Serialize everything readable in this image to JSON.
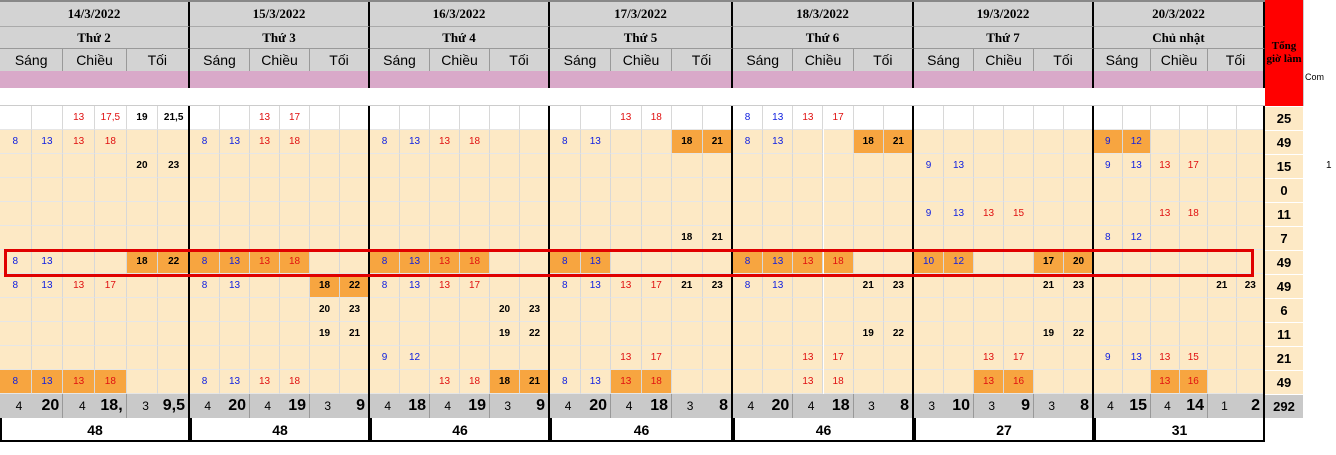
{
  "days": [
    {
      "date": "14/3/2022",
      "day": "Thứ 2"
    },
    {
      "date": "15/3/2022",
      "day": "Thứ 3"
    },
    {
      "date": "16/3/2022",
      "day": "Thứ 4"
    },
    {
      "date": "17/3/2022",
      "day": "Thứ 5"
    },
    {
      "date": "18/3/2022",
      "day": "Thứ 6"
    },
    {
      "date": "19/3/2022",
      "day": "Thứ 7"
    },
    {
      "date": "20/3/2022",
      "day": "Chủ nhật"
    }
  ],
  "shift_labels": [
    "Sáng",
    "Chiều",
    "Tối"
  ],
  "right_col": {
    "header": "Tổng giờ làm",
    "next_header": "Com",
    "values": [
      "25",
      "49",
      "15",
      "0",
      "11",
      "7",
      "49",
      "49",
      "6",
      "11",
      "21",
      "49",
      "292"
    ],
    "overflow": "1"
  },
  "colors": {
    "light": "#fde9c5",
    "orange": "#f7a540",
    "blue": "#1020e0",
    "red": "#e01010",
    "header": "#d3d3d3",
    "pink": "#d9a9c9",
    "accent": "#ff0000"
  },
  "rows": [
    [
      [
        [],
        [
          "13",
          "17,5"
        ],
        [
          "19",
          "21,5"
        ]
      ],
      [
        [],
        [
          "13",
          "17"
        ],
        []
      ],
      [
        [],
        [],
        []
      ],
      [
        [],
        [
          "13",
          "18"
        ],
        []
      ],
      [
        [
          "8",
          "13"
        ],
        [
          "13",
          "17"
        ],
        []
      ],
      [
        [],
        [],
        []
      ],
      [
        [],
        [],
        []
      ]
    ],
    [
      [
        [
          "8",
          "13"
        ],
        [
          "13",
          "18"
        ],
        []
      ],
      [
        [
          "8",
          "13"
        ],
        [
          "13",
          "18"
        ],
        []
      ],
      [
        [
          "8",
          "13"
        ],
        [
          "13",
          "18"
        ],
        []
      ],
      [
        [
          "8",
          "13"
        ],
        [],
        [
          "18",
          "21"
        ]
      ],
      [
        [
          "8",
          "13"
        ],
        [],
        [
          "18",
          "21"
        ]
      ],
      [
        [],
        [],
        []
      ],
      [
        [
          "9",
          "12"
        ],
        [],
        []
      ]
    ],
    [
      [
        [],
        [],
        [
          "20",
          "23"
        ]
      ],
      [
        [],
        [],
        []
      ],
      [
        [],
        [],
        []
      ],
      [
        [],
        [],
        []
      ],
      [
        [],
        [],
        []
      ],
      [
        [
          "9",
          "13"
        ],
        [],
        []
      ],
      [
        [
          "9",
          "13"
        ],
        [
          "13",
          "17"
        ],
        []
      ]
    ],
    [
      [
        [],
        [],
        []
      ],
      [
        [],
        [],
        []
      ],
      [
        [],
        [],
        []
      ],
      [
        [],
        [],
        []
      ],
      [
        [],
        [],
        []
      ],
      [
        [],
        [],
        []
      ],
      [
        [],
        [],
        []
      ]
    ],
    [
      [
        [],
        [],
        []
      ],
      [
        [],
        [],
        []
      ],
      [
        [],
        [],
        []
      ],
      [
        [],
        [],
        []
      ],
      [
        [],
        [],
        []
      ],
      [
        [
          "9",
          "13"
        ],
        [
          "13",
          "15"
        ],
        []
      ],
      [
        [],
        [
          "13",
          "18"
        ],
        []
      ]
    ],
    [
      [
        [],
        [],
        []
      ],
      [
        [],
        [],
        []
      ],
      [
        [],
        [],
        []
      ],
      [
        [],
        [],
        [
          "18",
          "21"
        ]
      ],
      [
        [],
        [],
        []
      ],
      [
        [],
        [],
        []
      ],
      [
        [
          "8",
          "12"
        ],
        [],
        []
      ]
    ],
    [
      [
        [
          "8",
          "13"
        ],
        [],
        [
          "18",
          "22"
        ]
      ],
      [
        [
          "8",
          "13"
        ],
        [
          "13",
          "18"
        ],
        []
      ],
      [
        [
          "8",
          "13"
        ],
        [
          "13",
          "18"
        ],
        []
      ],
      [
        [
          "8",
          "13"
        ],
        [],
        []
      ],
      [
        [
          "8",
          "13"
        ],
        [
          "13",
          "18"
        ],
        []
      ],
      [
        [
          "10",
          "12"
        ],
        [],
        [
          "17",
          "20"
        ]
      ],
      [
        [],
        [],
        []
      ]
    ],
    [
      [
        [
          "8",
          "13"
        ],
        [
          "13",
          "17"
        ],
        []
      ],
      [
        [
          "8",
          "13"
        ],
        [],
        [
          "18",
          "22"
        ]
      ],
      [
        [
          "8",
          "13"
        ],
        [
          "13",
          "17"
        ],
        []
      ],
      [
        [
          "8",
          "13"
        ],
        [
          "13",
          "17"
        ],
        [
          "21",
          "23"
        ]
      ],
      [
        [
          "8",
          "13"
        ],
        [],
        [
          "21",
          "23"
        ]
      ],
      [
        [],
        [],
        [
          "21",
          "23"
        ]
      ],
      [
        [],
        [],
        [
          "21",
          "23"
        ]
      ]
    ],
    [
      [
        [],
        [],
        []
      ],
      [
        [],
        [],
        [
          "20",
          "23"
        ]
      ],
      [
        [],
        [],
        [
          "20",
          "23"
        ]
      ],
      [
        [],
        [],
        []
      ],
      [
        [],
        [],
        []
      ],
      [
        [],
        [],
        []
      ],
      [
        [],
        [],
        []
      ]
    ],
    [
      [
        [],
        [],
        []
      ],
      [
        [],
        [],
        [
          "19",
          "21"
        ]
      ],
      [
        [],
        [],
        [
          "19",
          "22"
        ]
      ],
      [
        [],
        [],
        []
      ],
      [
        [],
        [],
        [
          "19",
          "22"
        ]
      ],
      [
        [],
        [],
        [
          "19",
          "22"
        ]
      ],
      [
        [],
        [],
        []
      ]
    ],
    [
      [
        [],
        [],
        []
      ],
      [
        [],
        [],
        []
      ],
      [
        [
          "9",
          "12"
        ],
        [],
        []
      ],
      [
        [],
        [
          "13",
          "17"
        ],
        []
      ],
      [
        [],
        [
          "13",
          "17"
        ],
        []
      ],
      [
        [],
        [
          "13",
          "17"
        ],
        []
      ],
      [
        [
          "9",
          "13"
        ],
        [
          "13",
          "15"
        ],
        []
      ]
    ],
    [
      [
        [
          "8",
          "13"
        ],
        [
          "13",
          "18"
        ],
        []
      ],
      [
        [
          "8",
          "13"
        ],
        [
          "13",
          "18"
        ],
        []
      ],
      [
        [],
        [
          "13",
          "18"
        ],
        [
          "18",
          "21"
        ]
      ],
      [
        [
          "8",
          "13"
        ],
        [
          "13",
          "18"
        ],
        []
      ],
      [
        [],
        [
          "13",
          "18"
        ],
        []
      ],
      [
        [],
        [
          "13",
          "16"
        ],
        []
      ],
      [
        [],
        [
          "13",
          "16"
        ],
        []
      ]
    ]
  ],
  "summary": [
    [
      [
        "4",
        "20"
      ],
      [
        "4",
        "18,"
      ],
      [
        "3",
        "9,5"
      ]
    ],
    [
      [
        "4",
        "20"
      ],
      [
        "4",
        "19"
      ],
      [
        "3",
        "9"
      ]
    ],
    [
      [
        "4",
        "18"
      ],
      [
        "4",
        "19"
      ],
      [
        "3",
        "9"
      ]
    ],
    [
      [
        "4",
        "20"
      ],
      [
        "4",
        "18"
      ],
      [
        "3",
        "8"
      ]
    ],
    [
      [
        "4",
        "20"
      ],
      [
        "4",
        "18"
      ],
      [
        "3",
        "8"
      ]
    ],
    [
      [
        "3",
        "10"
      ],
      [
        "3",
        "9"
      ],
      [
        "3",
        "8"
      ]
    ],
    [
      [
        "4",
        "15"
      ],
      [
        "4",
        "14"
      ],
      [
        "1",
        "2"
      ]
    ]
  ],
  "totals": [
    "48",
    "48",
    "46",
    "46",
    "46",
    "27",
    "31"
  ]
}
